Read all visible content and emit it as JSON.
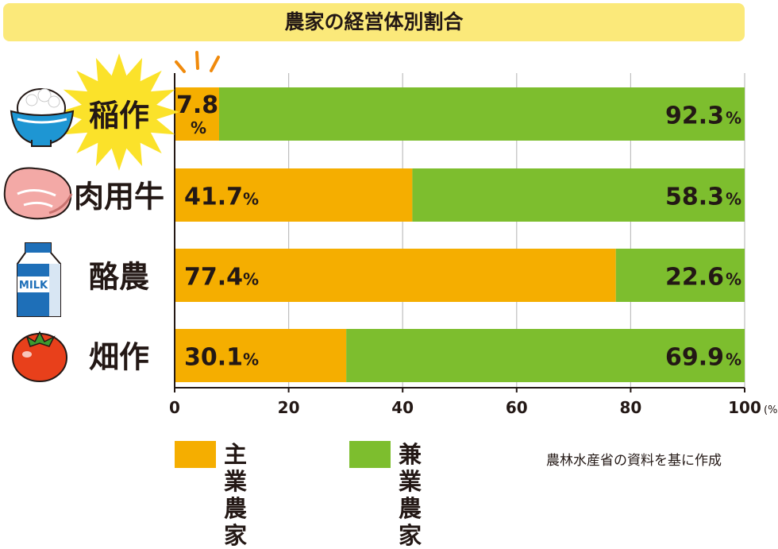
{
  "title": "農家の経営体別割合",
  "chart_data": {
    "type": "bar",
    "orientation": "horizontal",
    "stacked": true,
    "categories": [
      "稲作",
      "肉用牛",
      "酪農",
      "畑作"
    ],
    "series": [
      {
        "name": "主業農家",
        "color": "#f5ae00",
        "values": [
          7.8,
          41.7,
          77.4,
          30.1
        ]
      },
      {
        "name": "兼業農家",
        "color": "#7dbe2e",
        "values": [
          92.3,
          58.3,
          22.6,
          69.9
        ]
      }
    ],
    "value_labels": [
      [
        "7.8",
        "92.3"
      ],
      [
        "41.7",
        "58.3"
      ],
      [
        "77.4",
        "22.6"
      ],
      [
        "30.1",
        "69.9"
      ]
    ],
    "percent_sign": "%",
    "xlim": [
      0,
      100
    ],
    "xticks": [
      "0",
      "20",
      "40",
      "60",
      "80",
      "100"
    ],
    "xunit": "(%)",
    "grid": true
  },
  "category_icons": [
    "rice-bowl-icon",
    "beef-meat-icon",
    "milk-carton-icon",
    "tomato-icon"
  ],
  "milk_carton_text": "MILK",
  "legend": {
    "items": [
      {
        "label": "主業農家",
        "color": "#f5ae00"
      },
      {
        "label": "兼業農家",
        "color": "#7dbe2e"
      }
    ]
  },
  "source_note": "農林水産省の資料を基に作成"
}
